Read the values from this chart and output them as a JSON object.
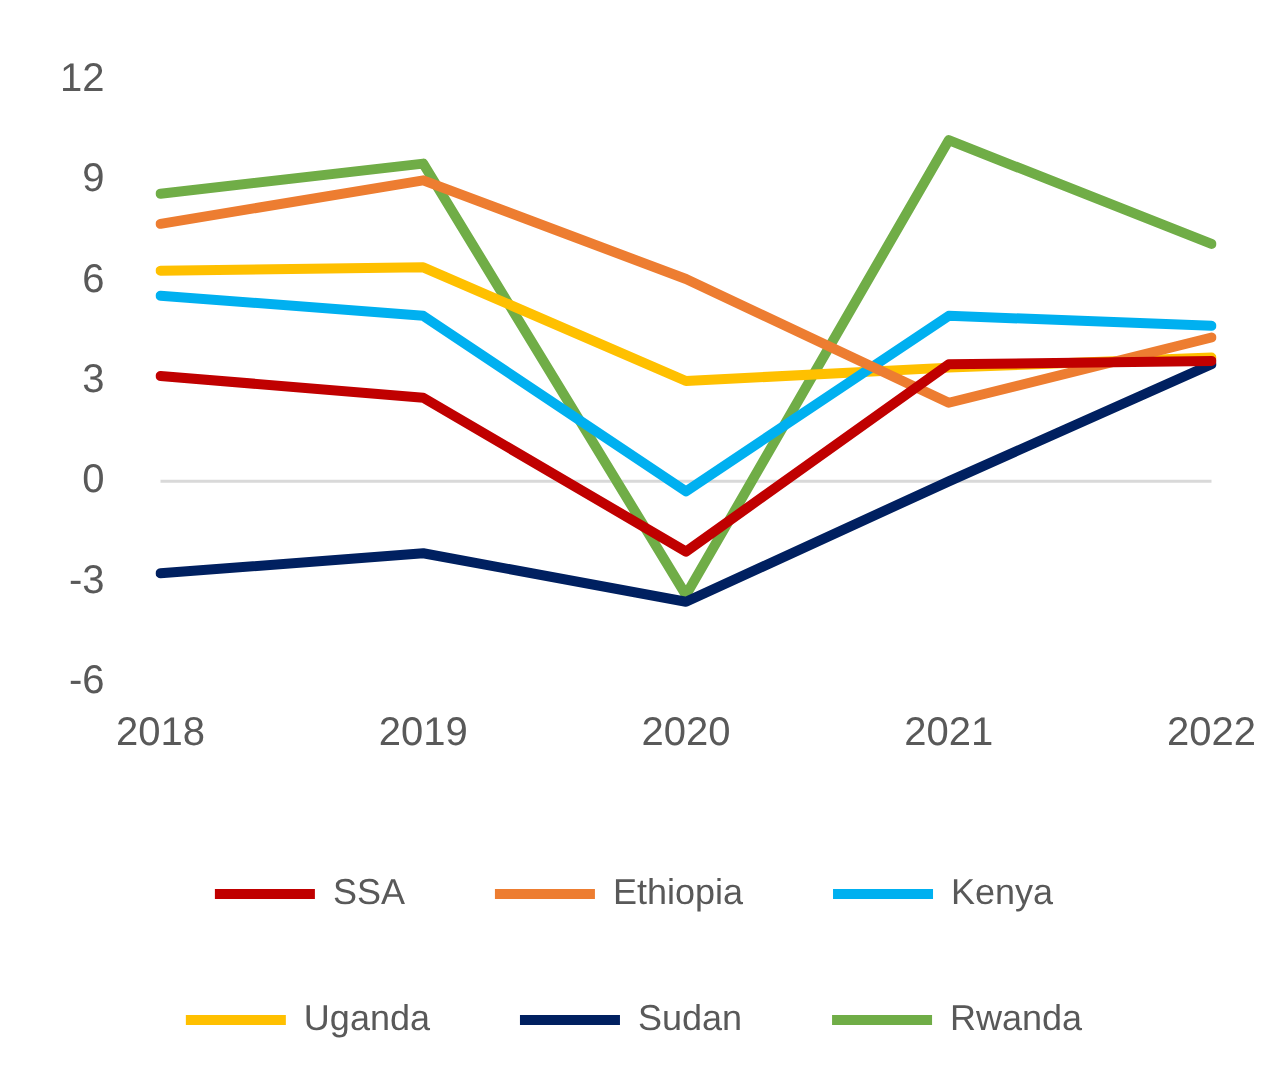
{
  "chart_data": {
    "type": "line",
    "categories": [
      "2018",
      "2019",
      "2020",
      "2021",
      "2022"
    ],
    "series": [
      {
        "name": "SSA",
        "color": "#c00000",
        "values": [
          3.15,
          2.5,
          -2.1,
          3.5,
          3.6
        ]
      },
      {
        "name": "Ethiopia",
        "color": "#ed7d31",
        "values": [
          7.7,
          9.0,
          6.05,
          2.35,
          4.3
        ]
      },
      {
        "name": "Kenya",
        "color": "#00b0f0",
        "values": [
          5.55,
          4.95,
          -0.3,
          4.95,
          4.65
        ]
      },
      {
        "name": "Uganda",
        "color": "#ffc000",
        "values": [
          6.3,
          6.4,
          3.0,
          3.4,
          3.7
        ]
      },
      {
        "name": "Sudan",
        "color": "#002060",
        "values": [
          -2.75,
          -2.15,
          -3.6,
          0.0,
          3.5
        ]
      },
      {
        "name": "Rwanda",
        "color": "#70ad47",
        "values": [
          8.6,
          9.5,
          -3.4,
          10.2,
          7.1
        ]
      }
    ],
    "ref_lines": [
      {
        "axis": "y",
        "value": 0,
        "color": "#d9d9d9"
      }
    ],
    "ylim": [
      -6,
      12
    ],
    "yticks": [
      -6,
      -3,
      0,
      3,
      6,
      9,
      12
    ],
    "grid": false,
    "legend": "bottom",
    "marker": "none",
    "line_style": "solid"
  }
}
